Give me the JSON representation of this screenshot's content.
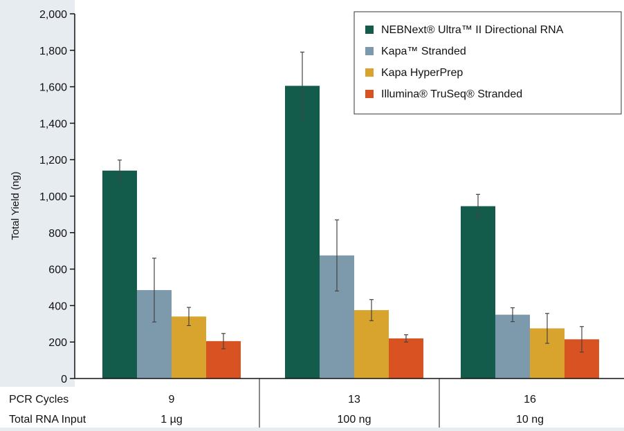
{
  "chart_data": {
    "type": "bar",
    "ylabel": "Total Yield (ng)",
    "ylim": [
      0,
      2000
    ],
    "yticks": [
      "0",
      "200",
      "400",
      "600",
      "800",
      "1,000",
      "1,200",
      "1,400",
      "1,600",
      "1,800",
      "2,000"
    ],
    "grid": false,
    "legend_position": "top-right",
    "categories": [
      {
        "pcr_cycles": "9",
        "rna_input": "1 µg"
      },
      {
        "pcr_cycles": "13",
        "rna_input": "100 ng"
      },
      {
        "pcr_cycles": "16",
        "rna_input": "10 ng"
      }
    ],
    "row_labels": {
      "pcr_cycles": "PCR Cycles",
      "rna_input": "Total RNA Input"
    },
    "series": [
      {
        "name": "NEBNext® Ultra™ II Directional RNA",
        "color": "#135b4b",
        "values": [
          1140,
          1605,
          945
        ],
        "errors": [
          58,
          185,
          65
        ]
      },
      {
        "name": "Kapa™ Stranded",
        "color": "#7c9aab",
        "values": [
          485,
          675,
          350
        ],
        "errors": [
          175,
          195,
          38
        ]
      },
      {
        "name": "Kapa HyperPrep",
        "color": "#d8a42e",
        "values": [
          340,
          375,
          275
        ],
        "errors": [
          50,
          58,
          82
        ]
      },
      {
        "name": "Illumina® TruSeq® Stranded",
        "color": "#d85321",
        "values": [
          205,
          220,
          215
        ],
        "errors": [
          42,
          20,
          70
        ]
      }
    ]
  }
}
